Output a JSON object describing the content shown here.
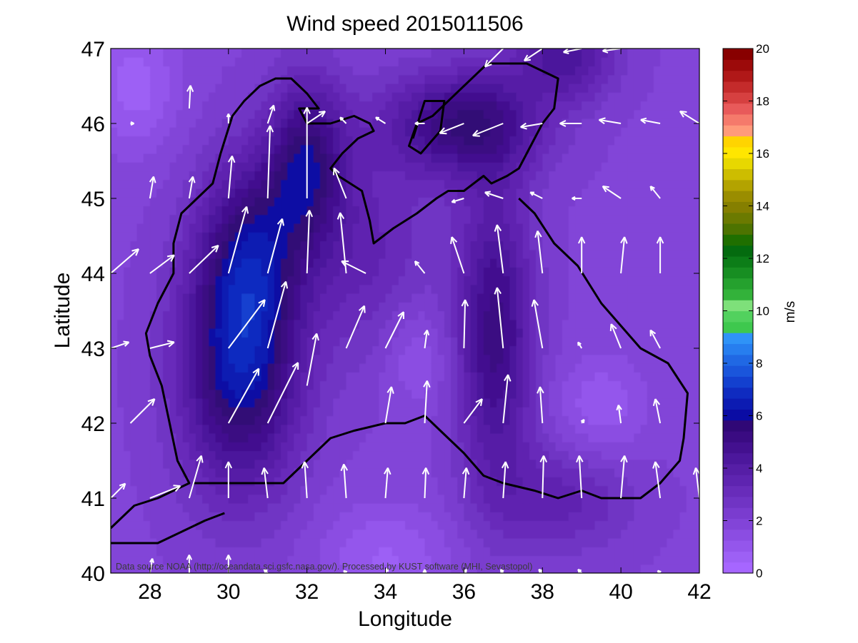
{
  "chart_data": {
    "type": "heatmap",
    "title": "Wind speed 2015011506",
    "xlabel": "Longitude",
    "ylabel": "Latitude",
    "xlim": [
      27,
      42
    ],
    "ylim": [
      40,
      47
    ],
    "xticks": [
      "28",
      "30",
      "32",
      "34",
      "36",
      "38",
      "40",
      "42"
    ],
    "yticks": [
      "40",
      "41",
      "42",
      "43",
      "44",
      "45",
      "46",
      "47"
    ],
    "colorbar": {
      "label": "m/s",
      "range": [
        0,
        20
      ],
      "ticks": [
        "0",
        "2",
        "4",
        "6",
        "8",
        "10",
        "12",
        "14",
        "16",
        "18",
        "20"
      ]
    },
    "credit": "Data source NOAA (http://oceandata.sci.gsfc.nasa.gov/). Processed by KUST software (MHI, Sevastopol)",
    "background_speed": 2,
    "speed_fields": [
      {
        "lon": 30.3,
        "lat": 42.8,
        "sigma_lon": 1.1,
        "sigma_lat": 1.2,
        "amp": 4.3
      },
      {
        "lon": 30.6,
        "lat": 44.4,
        "sigma_lon": 0.9,
        "sigma_lat": 0.9,
        "amp": 2.5
      },
      {
        "lon": 32.0,
        "lat": 45.5,
        "sigma_lon": 0.7,
        "sigma_lat": 0.8,
        "amp": 3.3
      },
      {
        "lon": 36.8,
        "lat": 43.2,
        "sigma_lon": 0.7,
        "sigma_lat": 1.4,
        "amp": 3.2
      },
      {
        "lon": 36.0,
        "lat": 46.0,
        "sigma_lon": 1.4,
        "sigma_lat": 0.5,
        "amp": 3.4
      },
      {
        "lon": 38.6,
        "lat": 46.9,
        "sigma_lon": 0.9,
        "sigma_lat": 0.4,
        "amp": 2.4
      },
      {
        "lon": 33.5,
        "lat": 44.3,
        "sigma_lon": 1.2,
        "sigma_lat": 1.0,
        "amp": 1.4
      },
      {
        "lon": 38.5,
        "lat": 41.0,
        "sigma_lon": 1.3,
        "sigma_lat": 0.5,
        "amp": 1.5
      },
      {
        "lon": 27.6,
        "lat": 46.5,
        "sigma_lon": 0.8,
        "sigma_lat": 0.6,
        "amp": -1.4
      },
      {
        "lon": 34.0,
        "lat": 40.2,
        "sigma_lon": 1.2,
        "sigma_lat": 0.5,
        "amp": -1.2
      },
      {
        "lon": 39.5,
        "lat": 42.2,
        "sigma_lon": 0.8,
        "sigma_lat": 0.5,
        "amp": -1.1
      },
      {
        "lon": 34.8,
        "lat": 42.9,
        "sigma_lon": 0.6,
        "sigma_lat": 0.5,
        "amp": -0.9
      }
    ],
    "wind_vectors": [
      {
        "lon": 27.5,
        "lat": 46.0,
        "u": 0.3,
        "v": 0.0
      },
      {
        "lon": 28.0,
        "lat": 45.0,
        "u": 0.3,
        "v": 1.8
      },
      {
        "lon": 29.0,
        "lat": 46.2,
        "u": 0.1,
        "v": 1.9
      },
      {
        "lon": 27.0,
        "lat": 44.0,
        "u": 2.3,
        "v": 2.0
      },
      {
        "lon": 28.0,
        "lat": 44.0,
        "u": 2.0,
        "v": 1.5
      },
      {
        "lon": 29.0,
        "lat": 44.0,
        "u": 2.4,
        "v": 2.3
      },
      {
        "lon": 27.0,
        "lat": 43.0,
        "u": 1.5,
        "v": 0.5
      },
      {
        "lon": 28.0,
        "lat": 43.0,
        "u": 2.0,
        "v": 0.5
      },
      {
        "lon": 27.0,
        "lat": 41.0,
        "u": 1.2,
        "v": 1.2
      },
      {
        "lon": 28.0,
        "lat": 41.0,
        "u": 2.5,
        "v": 1.0
      },
      {
        "lon": 27.5,
        "lat": 42.0,
        "u": 2.0,
        "v": 2.0
      },
      {
        "lon": 30.0,
        "lat": 43.0,
        "u": 3.0,
        "v": 4.0
      },
      {
        "lon": 31.0,
        "lat": 43.0,
        "u": 1.5,
        "v": 5.5
      },
      {
        "lon": 30.0,
        "lat": 42.0,
        "u": 2.5,
        "v": 4.5
      },
      {
        "lon": 31.0,
        "lat": 42.0,
        "u": 2.5,
        "v": 5.0
      },
      {
        "lon": 32.0,
        "lat": 42.5,
        "u": 0.8,
        "v": 4.3
      },
      {
        "lon": 30.0,
        "lat": 44.0,
        "u": 1.5,
        "v": 5.5
      },
      {
        "lon": 31.0,
        "lat": 44.0,
        "u": 1.2,
        "v": 4.5
      },
      {
        "lon": 32.0,
        "lat": 44.0,
        "u": 0.2,
        "v": 5.2
      },
      {
        "lon": 33.0,
        "lat": 44.0,
        "u": -0.5,
        "v": 5.0
      },
      {
        "lon": 31.0,
        "lat": 45.0,
        "u": 0.2,
        "v": 6.0
      },
      {
        "lon": 32.0,
        "lat": 45.0,
        "u": 0.0,
        "v": 7.5
      },
      {
        "lon": 33.0,
        "lat": 45.0,
        "u": -1.0,
        "v": 2.5
      },
      {
        "lon": 32.0,
        "lat": 46.0,
        "u": 1.5,
        "v": 1.0
      },
      {
        "lon": 33.5,
        "lat": 44.0,
        "u": -2.0,
        "v": 1.0
      },
      {
        "lon": 33.0,
        "lat": 43.0,
        "u": 1.5,
        "v": 3.5
      },
      {
        "lon": 34.0,
        "lat": 43.0,
        "u": 1.5,
        "v": 3.0
      },
      {
        "lon": 35.0,
        "lat": 43.0,
        "u": 0.2,
        "v": 1.5
      },
      {
        "lon": 34.0,
        "lat": 42.0,
        "u": 0.5,
        "v": 3.0
      },
      {
        "lon": 35.0,
        "lat": 42.0,
        "u": 0.2,
        "v": 3.5
      },
      {
        "lon": 34.0,
        "lat": 41.0,
        "u": 0.2,
        "v": 2.5
      },
      {
        "lon": 35.0,
        "lat": 41.0,
        "u": 0.1,
        "v": 2.5
      },
      {
        "lon": 36.0,
        "lat": 41.0,
        "u": 0.2,
        "v": 2.5
      },
      {
        "lon": 33.0,
        "lat": 41.0,
        "u": -0.2,
        "v": 2.8
      },
      {
        "lon": 32.0,
        "lat": 41.0,
        "u": -0.2,
        "v": 3.0
      },
      {
        "lon": 31.0,
        "lat": 41.0,
        "u": -0.3,
        "v": 2.5
      },
      {
        "lon": 30.0,
        "lat": 41.0,
        "u": 0.0,
        "v": 3.0
      },
      {
        "lon": 29.0,
        "lat": 41.0,
        "u": 1.0,
        "v": 3.5
      },
      {
        "lon": 35.0,
        "lat": 44.0,
        "u": -0.8,
        "v": 1.0
      },
      {
        "lon": 36.0,
        "lat": 44.0,
        "u": -1.0,
        "v": 3.0
      },
      {
        "lon": 37.0,
        "lat": 44.0,
        "u": -0.5,
        "v": 4.0
      },
      {
        "lon": 38.0,
        "lat": 44.0,
        "u": -0.4,
        "v": 3.5
      },
      {
        "lon": 39.0,
        "lat": 44.0,
        "u": 0.0,
        "v": 3.0
      },
      {
        "lon": 40.0,
        "lat": 44.0,
        "u": 0.3,
        "v": 3.0
      },
      {
        "lon": 41.0,
        "lat": 44.0,
        "u": 0.0,
        "v": 3.0
      },
      {
        "lon": 36.0,
        "lat": 43.0,
        "u": 0.1,
        "v": 4.0
      },
      {
        "lon": 37.0,
        "lat": 43.0,
        "u": -0.5,
        "v": 5.0
      },
      {
        "lon": 38.0,
        "lat": 43.0,
        "u": -0.7,
        "v": 4.0
      },
      {
        "lon": 39.0,
        "lat": 43.0,
        "u": -0.3,
        "v": 0.5
      },
      {
        "lon": 40.0,
        "lat": 43.0,
        "u": -0.8,
        "v": 2.0
      },
      {
        "lon": 41.0,
        "lat": 43.0,
        "u": -0.8,
        "v": 1.5
      },
      {
        "lon": 36.0,
        "lat": 42.0,
        "u": 1.5,
        "v": 2.0
      },
      {
        "lon": 37.0,
        "lat": 42.0,
        "u": 0.4,
        "v": 4.0
      },
      {
        "lon": 38.0,
        "lat": 42.0,
        "u": -0.2,
        "v": 3.0
      },
      {
        "lon": 39.0,
        "lat": 42.0,
        "u": 0.2,
        "v": 0.3
      },
      {
        "lon": 40.0,
        "lat": 42.0,
        "u": -0.2,
        "v": 1.5
      },
      {
        "lon": 41.0,
        "lat": 42.0,
        "u": -0.4,
        "v": 2.0
      },
      {
        "lon": 37.0,
        "lat": 41.0,
        "u": 0.2,
        "v": 3.0
      },
      {
        "lon": 38.0,
        "lat": 41.0,
        "u": 0.1,
        "v": 3.5
      },
      {
        "lon": 39.0,
        "lat": 41.0,
        "u": -0.2,
        "v": 3.5
      },
      {
        "lon": 40.0,
        "lat": 41.0,
        "u": 0.3,
        "v": 3.5
      },
      {
        "lon": 41.0,
        "lat": 41.0,
        "u": -0.4,
        "v": 3.0
      },
      {
        "lon": 42.0,
        "lat": 41.0,
        "u": -0.3,
        "v": 2.5
      },
      {
        "lon": 36.0,
        "lat": 46.0,
        "u": -2.0,
        "v": -0.8
      },
      {
        "lon": 37.0,
        "lat": 46.0,
        "u": -2.5,
        "v": -1.0
      },
      {
        "lon": 38.0,
        "lat": 46.0,
        "u": -1.8,
        "v": -0.3
      },
      {
        "lon": 39.0,
        "lat": 46.0,
        "u": -1.8,
        "v": 0.0
      },
      {
        "lon": 40.0,
        "lat": 46.0,
        "u": -1.8,
        "v": 0.3
      },
      {
        "lon": 41.0,
        "lat": 46.0,
        "u": -1.6,
        "v": 0.3
      },
      {
        "lon": 42.0,
        "lat": 46.0,
        "u": -1.6,
        "v": 1.0
      },
      {
        "lon": 34.0,
        "lat": 46.0,
        "u": -0.8,
        "v": 0.5
      },
      {
        "lon": 35.0,
        "lat": 46.0,
        "u": -0.8,
        "v": 0.0
      },
      {
        "lon": 37.0,
        "lat": 47.0,
        "u": -1.5,
        "v": -1.5
      },
      {
        "lon": 38.0,
        "lat": 47.0,
        "u": -1.5,
        "v": -1.0
      },
      {
        "lon": 39.0,
        "lat": 47.0,
        "u": -1.5,
        "v": -0.3
      },
      {
        "lon": 40.0,
        "lat": 47.0,
        "u": -1.5,
        "v": -0.2
      },
      {
        "lon": 36.0,
        "lat": 45.0,
        "u": -1.0,
        "v": -0.3
      },
      {
        "lon": 37.0,
        "lat": 45.0,
        "u": -1.5,
        "v": 0.5
      },
      {
        "lon": 38.0,
        "lat": 45.0,
        "u": -1.0,
        "v": 0.5
      },
      {
        "lon": 39.0,
        "lat": 45.0,
        "u": -0.8,
        "v": 0.0
      },
      {
        "lon": 40.0,
        "lat": 45.0,
        "u": -1.5,
        "v": 1.0
      },
      {
        "lon": 41.0,
        "lat": 45.0,
        "u": -0.8,
        "v": 1.0
      },
      {
        "lon": 29.0,
        "lat": 45.0,
        "u": 0.3,
        "v": 1.8
      },
      {
        "lon": 30.0,
        "lat": 45.0,
        "u": 0.3,
        "v": 3.5
      },
      {
        "lon": 30.0,
        "lat": 46.0,
        "u": 0.0,
        "v": 0.8
      },
      {
        "lon": 31.0,
        "lat": 46.0,
        "u": 0.5,
        "v": 1.5
      },
      {
        "lon": 33.0,
        "lat": 46.0,
        "u": -0.5,
        "v": 0.5
      },
      {
        "lon": 28.0,
        "lat": 40.0,
        "u": 0.2,
        "v": 1.2
      },
      {
        "lon": 29.0,
        "lat": 40.0,
        "u": 0.0,
        "v": 1.5
      },
      {
        "lon": 30.0,
        "lat": 40.0,
        "u": 0.0,
        "v": 1.5
      },
      {
        "lon": 31.0,
        "lat": 40.0,
        "u": -0.3,
        "v": 0.3
      },
      {
        "lon": 33.0,
        "lat": 40.0,
        "u": -0.2,
        "v": 0.2
      },
      {
        "lon": 34.0,
        "lat": 40.0,
        "u": 0.2,
        "v": 0.4
      },
      {
        "lon": 35.0,
        "lat": 40.0,
        "u": 0.0,
        "v": 0.3
      },
      {
        "lon": 36.0,
        "lat": 40.0,
        "u": 0.2,
        "v": 0.3
      },
      {
        "lon": 37.0,
        "lat": 40.0,
        "u": -0.2,
        "v": 0.3
      },
      {
        "lon": 38.0,
        "lat": 40.0,
        "u": -0.3,
        "v": 0.3
      },
      {
        "lon": 39.0,
        "lat": 40.0,
        "u": -0.3,
        "v": 0.3
      },
      {
        "lon": 41.0,
        "lat": 40.0,
        "u": -0.2,
        "v": 0.2
      }
    ],
    "coastline": [
      [
        27.0,
        40.6
      ],
      [
        27.6,
        40.9
      ],
      [
        28.2,
        41.0
      ],
      [
        28.6,
        41.1
      ],
      [
        29.0,
        41.2
      ],
      [
        28.7,
        41.5
      ],
      [
        28.5,
        42.0
      ],
      [
        28.3,
        42.5
      ],
      [
        28.0,
        42.9
      ],
      [
        27.9,
        43.2
      ],
      [
        28.2,
        43.6
      ],
      [
        28.6,
        44.0
      ],
      [
        28.6,
        44.4
      ],
      [
        28.8,
        44.8
      ],
      [
        29.2,
        45.0
      ],
      [
        29.6,
        45.2
      ],
      [
        29.8,
        45.6
      ],
      [
        30.1,
        46.1
      ],
      [
        30.4,
        46.3
      ],
      [
        30.8,
        46.5
      ],
      [
        31.2,
        46.6
      ],
      [
        31.6,
        46.6
      ],
      [
        32.0,
        46.4
      ],
      [
        32.3,
        46.2
      ],
      [
        31.8,
        46.2
      ],
      [
        32.0,
        46.0
      ],
      [
        32.6,
        46.0
      ],
      [
        33.2,
        46.1
      ],
      [
        33.6,
        46.0
      ],
      [
        33.7,
        45.9
      ],
      [
        33.3,
        45.8
      ],
      [
        32.9,
        45.6
      ],
      [
        32.6,
        45.4
      ],
      [
        32.8,
        45.3
      ],
      [
        33.4,
        45.1
      ],
      [
        33.6,
        44.7
      ],
      [
        33.7,
        44.4
      ],
      [
        34.2,
        44.6
      ],
      [
        34.8,
        44.8
      ],
      [
        35.3,
        45.0
      ],
      [
        35.6,
        45.1
      ],
      [
        36.0,
        45.1
      ],
      [
        36.5,
        45.3
      ],
      [
        36.7,
        45.2
      ],
      [
        37.1,
        45.3
      ],
      [
        37.4,
        45.4
      ],
      [
        38.0,
        46.0
      ],
      [
        38.3,
        46.2
      ],
      [
        38.4,
        46.6
      ],
      [
        37.6,
        46.8
      ],
      [
        36.6,
        46.8
      ],
      [
        35.8,
        46.4
      ],
      [
        35.2,
        46.1
      ],
      [
        34.8,
        46.0
      ],
      [
        34.6,
        45.7
      ],
      [
        34.9,
        45.6
      ],
      [
        35.4,
        45.9
      ],
      [
        35.5,
        46.3
      ],
      [
        35.0,
        46.3
      ],
      [
        34.7,
        45.8
      ]
    ],
    "coastline_east": [
      [
        37.4,
        45.0
      ],
      [
        37.8,
        44.8
      ],
      [
        38.3,
        44.4
      ],
      [
        38.9,
        44.1
      ],
      [
        39.5,
        43.6
      ],
      [
        40.0,
        43.3
      ],
      [
        40.5,
        43.0
      ],
      [
        41.2,
        42.8
      ],
      [
        41.7,
        42.4
      ],
      [
        41.6,
        41.8
      ],
      [
        41.5,
        41.5
      ],
      [
        41.0,
        41.2
      ],
      [
        40.5,
        41.0
      ],
      [
        40.0,
        41.0
      ],
      [
        39.5,
        41.0
      ],
      [
        39.0,
        41.1
      ],
      [
        38.4,
        41.0
      ],
      [
        37.8,
        41.1
      ],
      [
        37.0,
        41.2
      ],
      [
        36.5,
        41.3
      ],
      [
        36.0,
        41.6
      ],
      [
        35.6,
        41.8
      ],
      [
        35.0,
        42.1
      ],
      [
        34.5,
        42.0
      ],
      [
        34.0,
        42.0
      ],
      [
        33.2,
        41.9
      ],
      [
        32.6,
        41.8
      ],
      [
        32.0,
        41.5
      ],
      [
        31.4,
        41.2
      ],
      [
        30.8,
        41.2
      ],
      [
        30.2,
        41.2
      ],
      [
        29.6,
        41.2
      ],
      [
        29.1,
        41.2
      ]
    ],
    "coastline_south": [
      [
        27.0,
        40.4
      ],
      [
        27.6,
        40.4
      ],
      [
        28.2,
        40.4
      ],
      [
        28.6,
        40.5
      ],
      [
        29.0,
        40.6
      ],
      [
        29.4,
        40.7
      ],
      [
        29.9,
        40.8
      ]
    ],
    "colormap": [
      "#a666ff",
      "#9d60f5",
      "#9456ec",
      "#8b4de2",
      "#8244d8",
      "#7a3ccf",
      "#7034c4",
      "#682cba",
      "#5e24b0",
      "#561ea6",
      "#4c179c",
      "#43108f",
      "#3a0b82",
      "#300876",
      "#0a0ca4",
      "#0c1bb2",
      "#0f2bc0",
      "#1340cf",
      "#1a55db",
      "#2068e4",
      "#277eef",
      "#2f93f7",
      "#3ec84e",
      "#52d15e",
      "#7ee07a",
      "#33b23a",
      "#25a12e",
      "#178e22",
      "#0c7d18",
      "#046b0f",
      "#1f6f00",
      "#4d7300",
      "#6b7a00",
      "#857f00",
      "#9a8d00",
      "#b3a300",
      "#cdbd00",
      "#e7d800",
      "#ffe600",
      "#ffd400",
      "#ff9a7a",
      "#f57a6b",
      "#e85a5a",
      "#d64040",
      "#c42b2b",
      "#b01818",
      "#9c0a0a",
      "#880000"
    ]
  }
}
